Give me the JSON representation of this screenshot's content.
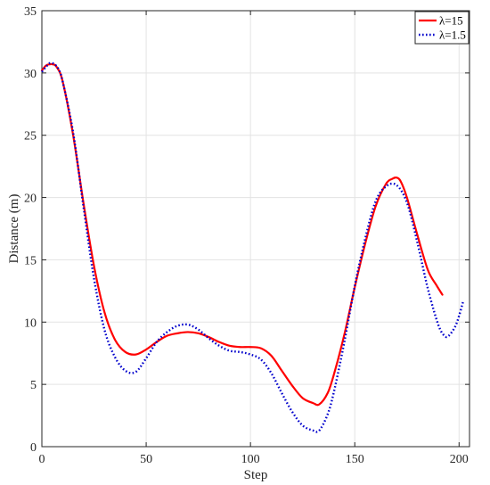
{
  "chart_data": {
    "type": "line",
    "xlabel": "Step",
    "ylabel": "Distance (m)",
    "xlim": [
      0,
      205
    ],
    "ylim": [
      0,
      35
    ],
    "xticks": [
      0,
      50,
      100,
      150,
      200
    ],
    "yticks": [
      0,
      5,
      10,
      15,
      20,
      25,
      30,
      35
    ],
    "grid": true,
    "legend_position": "top-right",
    "series": [
      {
        "name": "λ=15",
        "color": "#ff0000",
        "style": "solid",
        "x": [
          0,
          2,
          4,
          5,
          7,
          10,
          15,
          20,
          25,
          30,
          35,
          40,
          45,
          50,
          55,
          60,
          65,
          70,
          75,
          80,
          85,
          90,
          95,
          100,
          105,
          110,
          115,
          120,
          125,
          130,
          133,
          137,
          140,
          145,
          150,
          155,
          160,
          165,
          168,
          170,
          172,
          175,
          180,
          185,
          189,
          192
        ],
        "y": [
          30.2,
          30.6,
          30.7,
          30.7,
          30.5,
          29.3,
          25.0,
          19.5,
          14.5,
          10.8,
          8.6,
          7.6,
          7.4,
          7.8,
          8.4,
          8.9,
          9.1,
          9.2,
          9.1,
          8.8,
          8.4,
          8.1,
          8.0,
          8.0,
          7.9,
          7.3,
          6.1,
          4.9,
          3.9,
          3.5,
          3.4,
          4.3,
          5.8,
          9.0,
          12.8,
          16.3,
          19.3,
          21.1,
          21.5,
          21.6,
          21.3,
          20.0,
          17.0,
          14.2,
          13.0,
          12.2
        ]
      },
      {
        "name": "λ=1.5",
        "color": "#0000cc",
        "style": "dotted",
        "x": [
          0,
          2,
          4,
          6,
          8,
          10,
          15,
          20,
          25,
          30,
          35,
          40,
          45,
          50,
          55,
          60,
          65,
          70,
          75,
          80,
          85,
          90,
          95,
          100,
          105,
          110,
          115,
          120,
          125,
          130,
          133,
          137,
          140,
          145,
          150,
          155,
          160,
          165,
          170,
          175,
          180,
          185,
          190,
          193,
          195,
          198,
          200,
          202
        ],
        "y": [
          30.1,
          30.5,
          30.8,
          30.7,
          30.3,
          29.3,
          25.2,
          19.2,
          13.5,
          9.4,
          7.2,
          6.1,
          6.0,
          7.1,
          8.4,
          9.2,
          9.7,
          9.8,
          9.4,
          8.7,
          8.1,
          7.7,
          7.6,
          7.4,
          7.0,
          5.9,
          4.3,
          2.8,
          1.7,
          1.3,
          1.3,
          2.6,
          4.4,
          8.4,
          12.9,
          16.7,
          19.7,
          20.9,
          21.0,
          19.6,
          16.4,
          12.7,
          9.8,
          8.9,
          8.9,
          9.6,
          10.5,
          11.7
        ]
      }
    ]
  }
}
